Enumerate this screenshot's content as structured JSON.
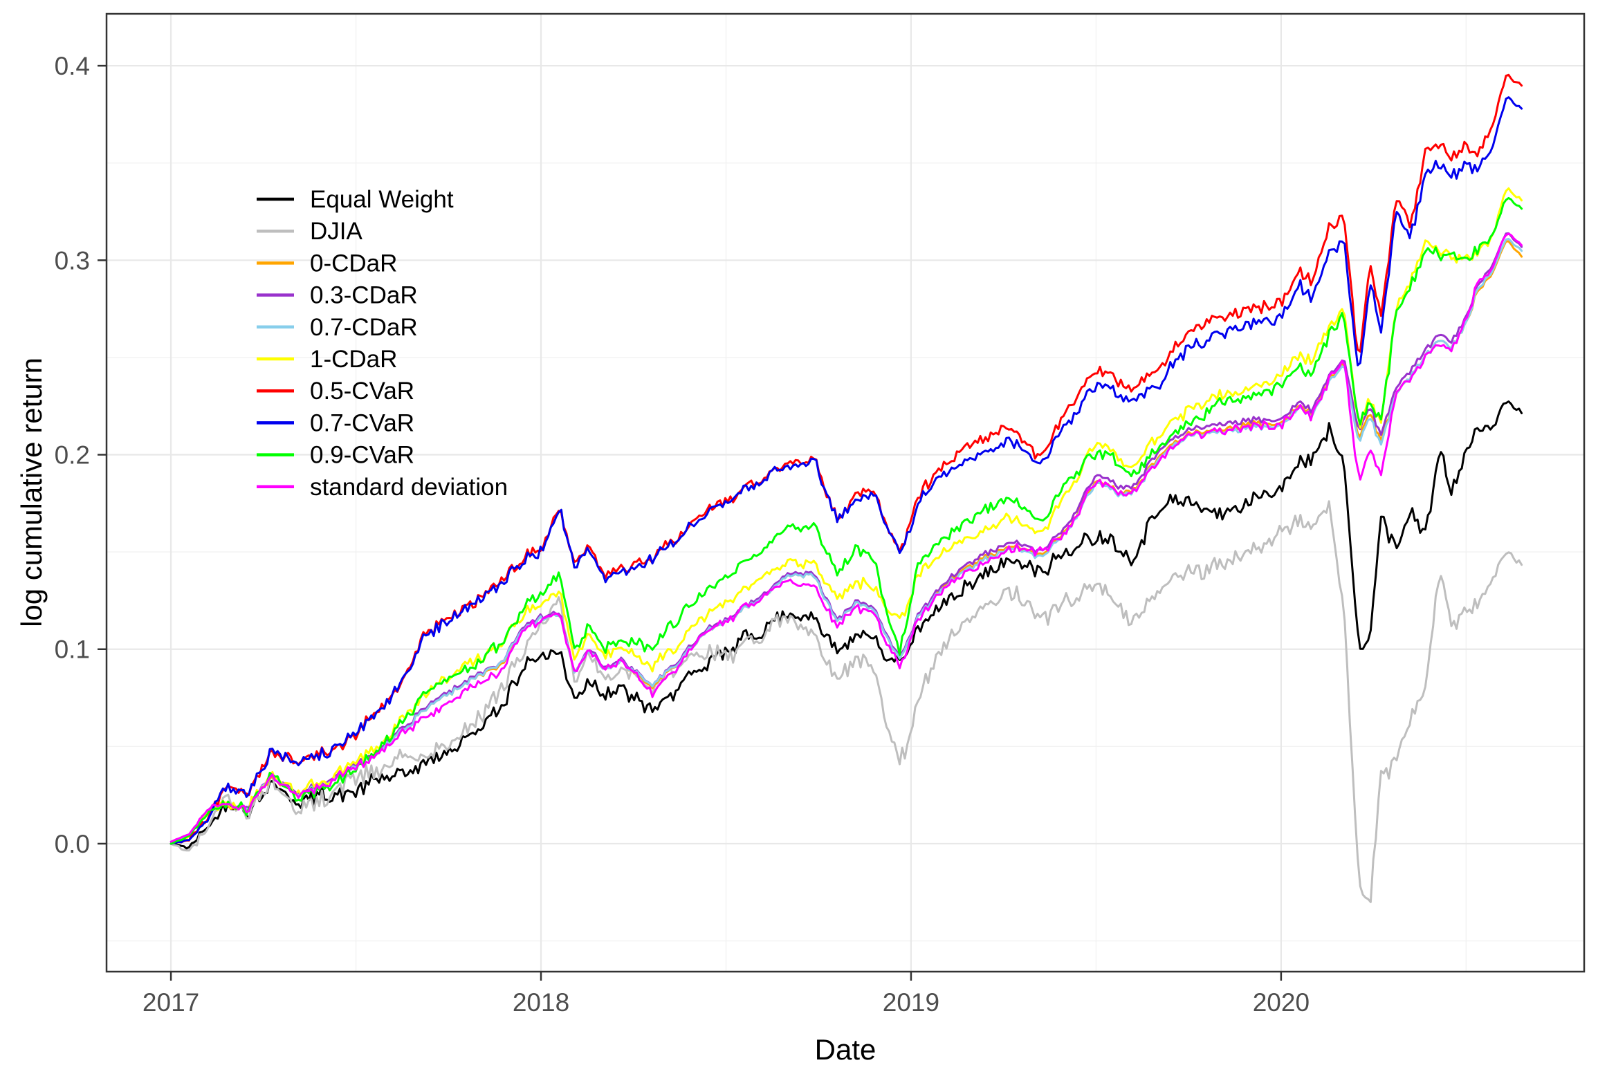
{
  "chart": {
    "xlabel": "Date",
    "ylabel": "log cumulative return",
    "x_tick_labels": [
      "2017",
      "2018",
      "2019",
      "2020"
    ],
    "y_tick_labels": [
      "0.0",
      "0.1",
      "0.2",
      "0.3",
      "0.4"
    ]
  },
  "legend": {
    "items": [
      {
        "label": "Equal Weight",
        "color": "#000000"
      },
      {
        "label": "DJIA",
        "color": "#BEBEBE"
      },
      {
        "label": "0-CDaR",
        "color": "#FFA500"
      },
      {
        "label": "0.3-CDaR",
        "color": "#9932CC"
      },
      {
        "label": "0.7-CDaR",
        "color": "#87CEEB"
      },
      {
        "label": "1-CDaR",
        "color": "#FFFF00"
      },
      {
        "label": "0.5-CVaR",
        "color": "#FF0000"
      },
      {
        "label": "0.7-CVaR",
        "color": "#0000EE"
      },
      {
        "label": "0.9-CVaR",
        "color": "#00FF00"
      },
      {
        "label": "standard deviation",
        "color": "#FF00FF"
      }
    ]
  },
  "chart_data": {
    "type": "line",
    "title": "",
    "xlabel": "Date",
    "ylabel": "log cumulative return",
    "grid": true,
    "legend_position": "inside upper-left",
    "background": "#ffffff",
    "grid_major_color": "#e8e8e8",
    "grid_minor_color": "#f2f2f2",
    "panel_border_color": "#333333",
    "tick_label_color": "#4d4d4d",
    "xlim": [
      2016.826,
      2020.819
    ],
    "ylim": [
      -0.0658,
      0.4267
    ],
    "x_major_ticks": [
      2017,
      2018,
      2019,
      2020
    ],
    "x_minor_ticks": [
      2017.5,
      2018.5,
      2019.5,
      2020.5
    ],
    "y_major_ticks": [
      0.0,
      0.1,
      0.2,
      0.3,
      0.4
    ],
    "y_minor_ticks": [
      -0.05,
      0.05,
      0.15,
      0.25,
      0.35
    ],
    "x_years": [
      2017.0,
      2017.05,
      2017.1,
      2017.15,
      2017.21,
      2017.27,
      2017.34,
      2017.4,
      2017.47,
      2017.55,
      2017.62,
      2017.68,
      2017.75,
      2017.82,
      2017.89,
      2017.95,
      2018.0,
      2018.05,
      2018.09,
      2018.13,
      2018.17,
      2018.22,
      2018.3,
      2018.38,
      2018.45,
      2018.5,
      2018.56,
      2018.62,
      2018.67,
      2018.74,
      2018.8,
      2018.85,
      2018.9,
      2018.97,
      2019.02,
      2019.1,
      2019.19,
      2019.27,
      2019.35,
      2019.42,
      2019.5,
      2019.56,
      2019.6,
      2019.67,
      2019.75,
      2019.83,
      2019.92,
      2020.0,
      2020.05,
      2020.08,
      2020.13,
      2020.17,
      2020.21,
      2020.24,
      2020.27,
      2020.31,
      2020.35,
      2020.39,
      2020.43,
      2020.46,
      2020.5,
      2020.53,
      2020.57,
      2020.61,
      2020.65
    ],
    "series": [
      {
        "name": "Equal Weight",
        "color": "#000000",
        "values": [
          0.0,
          -0.002,
          0.009,
          0.021,
          0.016,
          0.032,
          0.021,
          0.025,
          0.025,
          0.032,
          0.036,
          0.04,
          0.047,
          0.057,
          0.07,
          0.09,
          0.098,
          0.097,
          0.075,
          0.085,
          0.077,
          0.08,
          0.068,
          0.082,
          0.092,
          0.099,
          0.106,
          0.113,
          0.119,
          0.116,
          0.1,
          0.108,
          0.104,
          0.092,
          0.11,
          0.125,
          0.136,
          0.146,
          0.14,
          0.15,
          0.159,
          0.153,
          0.146,
          0.175,
          0.176,
          0.169,
          0.176,
          0.184,
          0.196,
          0.198,
          0.213,
          0.198,
          0.099,
          0.106,
          0.168,
          0.152,
          0.172,
          0.158,
          0.204,
          0.18,
          0.2,
          0.214,
          0.213,
          0.227,
          0.222
        ]
      },
      {
        "name": "DJIA",
        "color": "#BEBEBE",
        "values": [
          0.0,
          -0.004,
          0.008,
          0.026,
          0.016,
          0.034,
          0.018,
          0.022,
          0.032,
          0.036,
          0.044,
          0.044,
          0.052,
          0.062,
          0.079,
          0.1,
          0.113,
          0.127,
          0.085,
          0.098,
          0.086,
          0.089,
          0.08,
          0.092,
          0.098,
          0.096,
          0.104,
          0.112,
          0.117,
          0.107,
          0.084,
          0.095,
          0.088,
          0.04,
          0.075,
          0.105,
          0.12,
          0.13,
          0.115,
          0.125,
          0.134,
          0.122,
          0.114,
          0.132,
          0.139,
          0.143,
          0.15,
          0.16,
          0.168,
          0.163,
          0.172,
          0.12,
          -0.02,
          -0.03,
          0.035,
          0.042,
          0.065,
          0.08,
          0.142,
          0.114,
          0.118,
          0.124,
          0.133,
          0.149,
          0.144
        ]
      },
      {
        "name": "0-CDaR",
        "color": "#FFA500",
        "values": [
          0.0,
          0.004,
          0.017,
          0.02,
          0.018,
          0.035,
          0.025,
          0.029,
          0.036,
          0.045,
          0.057,
          0.068,
          0.077,
          0.085,
          0.091,
          0.111,
          0.116,
          0.118,
          0.088,
          0.1,
          0.09,
          0.093,
          0.08,
          0.095,
          0.109,
          0.114,
          0.122,
          0.13,
          0.138,
          0.138,
          0.114,
          0.124,
          0.12,
          0.094,
          0.117,
          0.135,
          0.146,
          0.153,
          0.148,
          0.161,
          0.187,
          0.181,
          0.181,
          0.2,
          0.211,
          0.212,
          0.216,
          0.216,
          0.226,
          0.22,
          0.238,
          0.248,
          0.208,
          0.222,
          0.207,
          0.232,
          0.241,
          0.25,
          0.259,
          0.255,
          0.267,
          0.284,
          0.293,
          0.31,
          0.302
        ]
      },
      {
        "name": "0.3-CDaR",
        "color": "#9932CC",
        "values": [
          0.0,
          0.004,
          0.018,
          0.021,
          0.019,
          0.036,
          0.026,
          0.03,
          0.037,
          0.046,
          0.058,
          0.069,
          0.078,
          0.086,
          0.092,
          0.112,
          0.117,
          0.119,
          0.088,
          0.101,
          0.091,
          0.094,
          0.081,
          0.096,
          0.11,
          0.115,
          0.123,
          0.131,
          0.139,
          0.139,
          0.115,
          0.125,
          0.121,
          0.095,
          0.118,
          0.136,
          0.148,
          0.155,
          0.15,
          0.163,
          0.19,
          0.184,
          0.183,
          0.203,
          0.213,
          0.215,
          0.218,
          0.218,
          0.228,
          0.222,
          0.24,
          0.25,
          0.212,
          0.225,
          0.21,
          0.235,
          0.244,
          0.253,
          0.262,
          0.258,
          0.27,
          0.287,
          0.297,
          0.314,
          0.307
        ]
      },
      {
        "name": "0.7-CDaR",
        "color": "#87CEEB",
        "values": [
          0.0,
          0.004,
          0.017,
          0.021,
          0.018,
          0.036,
          0.025,
          0.029,
          0.036,
          0.045,
          0.057,
          0.068,
          0.077,
          0.085,
          0.092,
          0.111,
          0.116,
          0.118,
          0.088,
          0.1,
          0.09,
          0.093,
          0.081,
          0.095,
          0.109,
          0.114,
          0.122,
          0.13,
          0.138,
          0.138,
          0.114,
          0.124,
          0.12,
          0.094,
          0.117,
          0.134,
          0.145,
          0.152,
          0.147,
          0.16,
          0.186,
          0.18,
          0.18,
          0.199,
          0.21,
          0.211,
          0.214,
          0.215,
          0.225,
          0.219,
          0.237,
          0.247,
          0.206,
          0.22,
          0.205,
          0.232,
          0.241,
          0.25,
          0.259,
          0.255,
          0.267,
          0.285,
          0.294,
          0.311,
          0.305
        ]
      },
      {
        "name": "1-CDaR",
        "color": "#FFFF00",
        "values": [
          0.0,
          0.004,
          0.017,
          0.022,
          0.019,
          0.037,
          0.027,
          0.031,
          0.038,
          0.048,
          0.062,
          0.076,
          0.086,
          0.094,
          0.102,
          0.118,
          0.123,
          0.13,
          0.095,
          0.108,
          0.098,
          0.1,
          0.091,
          0.104,
          0.118,
          0.125,
          0.132,
          0.14,
          0.145,
          0.144,
          0.126,
          0.135,
          0.131,
          0.114,
          0.138,
          0.152,
          0.159,
          0.168,
          0.159,
          0.18,
          0.207,
          0.199,
          0.193,
          0.211,
          0.223,
          0.23,
          0.234,
          0.241,
          0.252,
          0.247,
          0.266,
          0.274,
          0.214,
          0.23,
          0.216,
          0.275,
          0.291,
          0.308,
          0.306,
          0.302,
          0.3,
          0.305,
          0.31,
          0.337,
          0.331
        ]
      },
      {
        "name": "0.5-CVaR",
        "color": "#FF0000",
        "values": [
          0.0,
          0.002,
          0.014,
          0.03,
          0.027,
          0.047,
          0.043,
          0.046,
          0.051,
          0.066,
          0.08,
          0.107,
          0.116,
          0.124,
          0.135,
          0.146,
          0.152,
          0.172,
          0.144,
          0.153,
          0.139,
          0.141,
          0.147,
          0.159,
          0.171,
          0.177,
          0.184,
          0.191,
          0.195,
          0.198,
          0.167,
          0.179,
          0.181,
          0.149,
          0.179,
          0.196,
          0.208,
          0.214,
          0.198,
          0.223,
          0.244,
          0.238,
          0.234,
          0.245,
          0.263,
          0.27,
          0.275,
          0.278,
          0.296,
          0.288,
          0.316,
          0.323,
          0.247,
          0.3,
          0.27,
          0.332,
          0.32,
          0.355,
          0.36,
          0.353,
          0.358,
          0.355,
          0.368,
          0.395,
          0.39
        ]
      },
      {
        "name": "0.7-CVaR",
        "color": "#0000EE",
        "values": [
          0.0,
          0.002,
          0.013,
          0.031,
          0.026,
          0.048,
          0.042,
          0.045,
          0.052,
          0.065,
          0.081,
          0.106,
          0.115,
          0.123,
          0.134,
          0.145,
          0.151,
          0.172,
          0.143,
          0.152,
          0.137,
          0.139,
          0.146,
          0.158,
          0.17,
          0.176,
          0.183,
          0.19,
          0.194,
          0.197,
          0.166,
          0.177,
          0.179,
          0.148,
          0.175,
          0.192,
          0.2,
          0.207,
          0.194,
          0.216,
          0.237,
          0.231,
          0.227,
          0.237,
          0.255,
          0.262,
          0.267,
          0.27,
          0.288,
          0.28,
          0.303,
          0.311,
          0.24,
          0.29,
          0.262,
          0.326,
          0.312,
          0.345,
          0.35,
          0.343,
          0.349,
          0.347,
          0.357,
          0.384,
          0.378
        ]
      },
      {
        "name": "0.9-CVaR",
        "color": "#00FF00",
        "values": [
          0.0,
          0.004,
          0.016,
          0.021,
          0.018,
          0.036,
          0.024,
          0.028,
          0.034,
          0.046,
          0.06,
          0.077,
          0.085,
          0.092,
          0.103,
          0.12,
          0.128,
          0.139,
          0.099,
          0.112,
          0.101,
          0.104,
          0.101,
          0.118,
          0.13,
          0.137,
          0.146,
          0.155,
          0.163,
          0.163,
          0.139,
          0.152,
          0.145,
          0.097,
          0.145,
          0.158,
          0.17,
          0.178,
          0.164,
          0.186,
          0.202,
          0.196,
          0.189,
          0.205,
          0.216,
          0.226,
          0.23,
          0.236,
          0.245,
          0.24,
          0.262,
          0.272,
          0.216,
          0.228,
          0.215,
          0.272,
          0.288,
          0.305,
          0.303,
          0.302,
          0.3,
          0.305,
          0.312,
          0.332,
          0.327
        ]
      },
      {
        "name": "standard deviation",
        "color": "#FF00FF",
        "values": [
          0.001,
          0.005,
          0.018,
          0.021,
          0.018,
          0.035,
          0.025,
          0.029,
          0.036,
          0.044,
          0.056,
          0.064,
          0.073,
          0.081,
          0.088,
          0.11,
          0.115,
          0.118,
          0.088,
          0.1,
          0.09,
          0.094,
          0.077,
          0.094,
          0.109,
          0.115,
          0.122,
          0.13,
          0.135,
          0.133,
          0.112,
          0.122,
          0.118,
          0.091,
          0.115,
          0.133,
          0.143,
          0.152,
          0.15,
          0.16,
          0.187,
          0.18,
          0.18,
          0.198,
          0.21,
          0.212,
          0.215,
          0.215,
          0.225,
          0.219,
          0.238,
          0.25,
          0.186,
          0.204,
          0.188,
          0.232,
          0.24,
          0.25,
          0.258,
          0.254,
          0.268,
          0.289,
          0.295,
          0.314,
          0.308
        ]
      }
    ]
  }
}
